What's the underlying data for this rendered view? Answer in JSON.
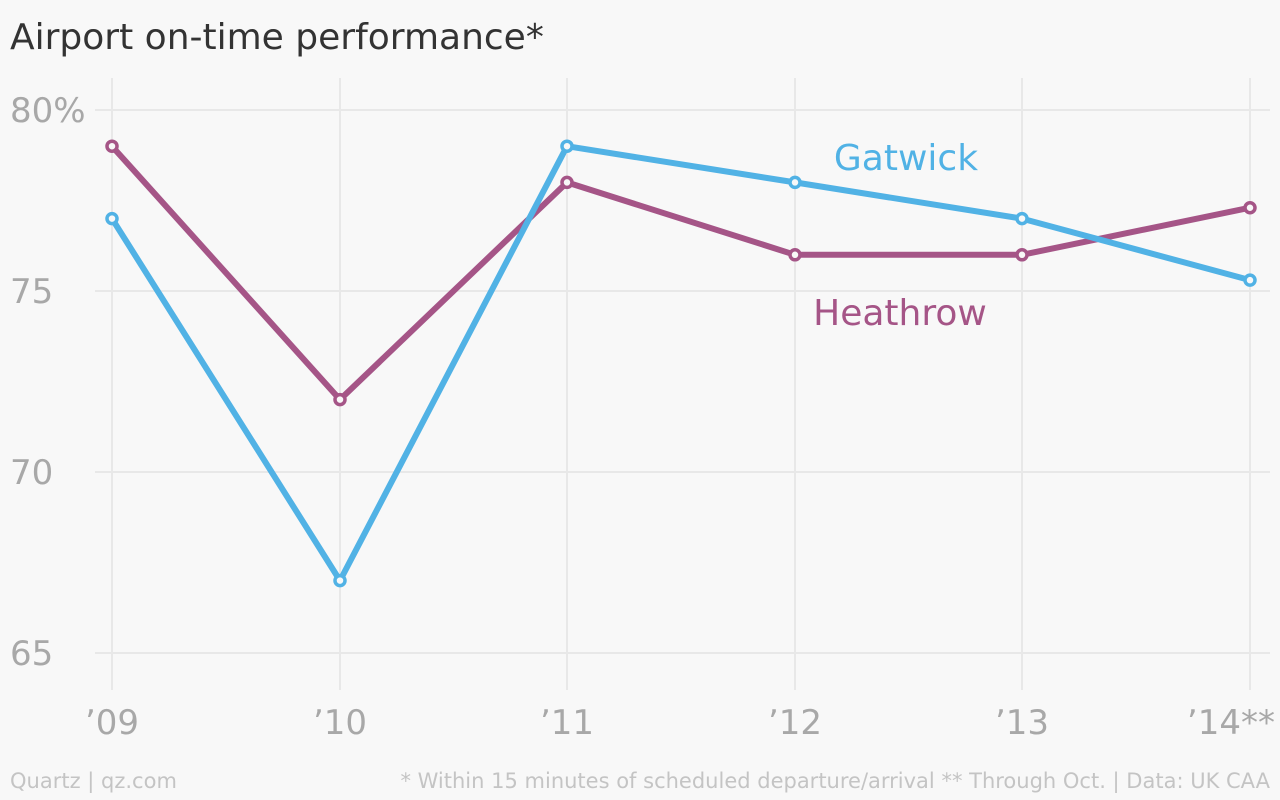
{
  "colors": {
    "background": "#f8f8f8",
    "grid": "#e8e8e8",
    "gatwick": "#51b2e5",
    "heathrow": "#a55587",
    "axis_text": "#a8a8a8",
    "footer_text": "#c4c4c4",
    "title_text": "#333333"
  },
  "chart_data": {
    "type": "line",
    "title": "Airport on-time performance*",
    "xlabel": "",
    "ylabel": "",
    "categories": [
      "’09",
      "’10",
      "’11",
      "’12",
      "’13",
      "’14**"
    ],
    "ylim": [
      64,
      81
    ],
    "yticks": [
      80,
      75,
      70,
      65
    ],
    "ytick_labels": [
      "80%",
      "75",
      "70",
      "65"
    ],
    "grid": true,
    "legend": "inline labels",
    "series": [
      {
        "name": "Gatwick",
        "color": "#51b2e5",
        "values": [
          77,
          67,
          79,
          78,
          77,
          75.3
        ]
      },
      {
        "name": "Heathrow",
        "color": "#a55587",
        "values": [
          79,
          72,
          78,
          76,
          76,
          77.3
        ]
      }
    ]
  },
  "footer": {
    "source_left": "Quartz | qz.com",
    "note_right": "* Within 15 minutes of scheduled departure/arrival  ** Through Oct. | Data: UK CAA"
  }
}
